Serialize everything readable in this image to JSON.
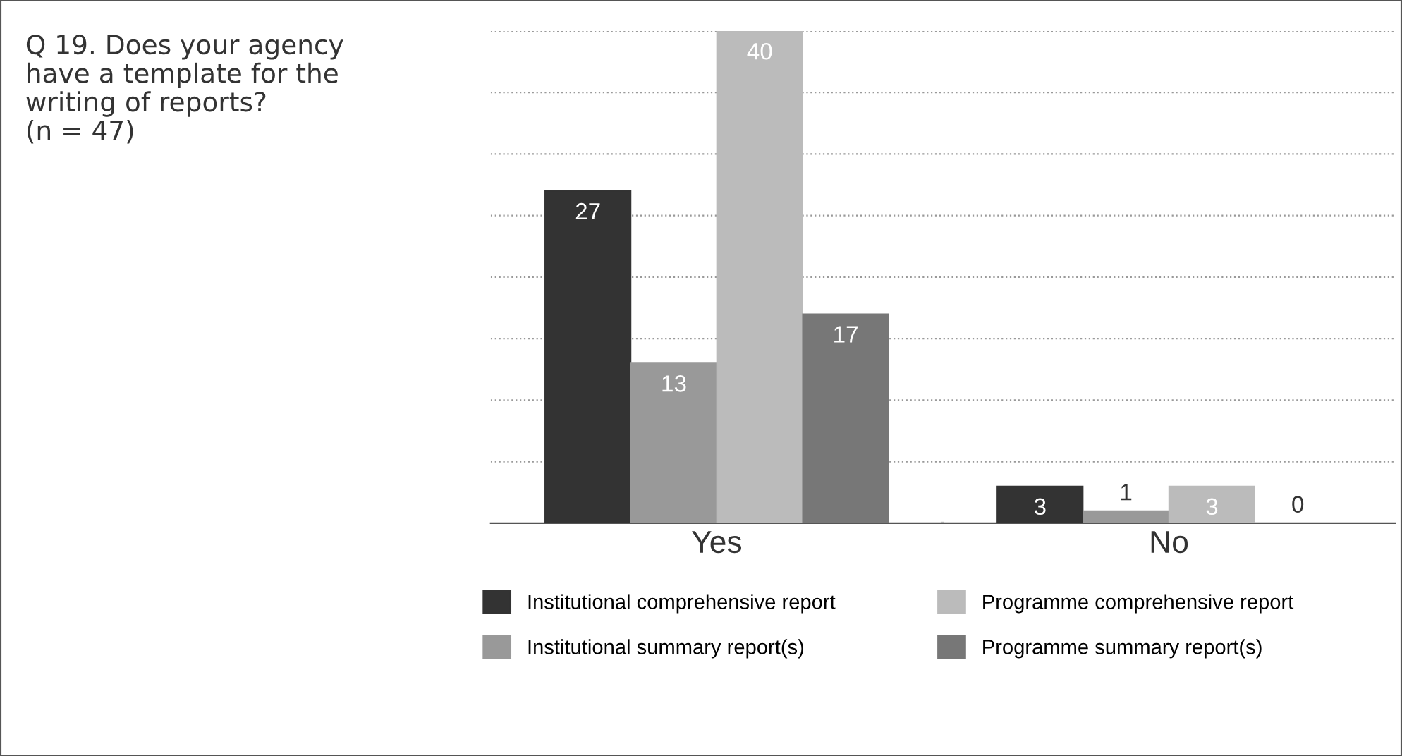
{
  "chart_data": {
    "type": "bar",
    "title": "Q 19. Does your agency\nhave a template for the\nwriting of reports?\n(n = 47)",
    "categories": [
      "Yes",
      "No"
    ],
    "series": [
      {
        "name": "Institutional comprehensive report",
        "color": "#333333",
        "values": [
          27,
          3
        ]
      },
      {
        "name": "Institutional summary report(s)",
        "color": "#999999",
        "values": [
          13,
          1
        ]
      },
      {
        "name": "Programme comprehensive report",
        "color": "#bbbbbb",
        "values": [
          40,
          3
        ]
      },
      {
        "name": "Programme summary report(s)",
        "color": "#777777",
        "values": [
          17,
          0
        ]
      }
    ],
    "ylim": [
      0,
      40
    ],
    "yticks": [
      {
        "value": 5,
        "label": null
      },
      {
        "value": 10,
        "label": null
      },
      {
        "value": 15,
        "label": null
      },
      {
        "value": 20,
        "label": null
      },
      {
        "value": 25,
        "label": null
      },
      {
        "value": 30,
        "label": null
      },
      {
        "value": 35,
        "label": null
      },
      {
        "value": 40,
        "label": null
      }
    ],
    "tick_labels": "x",
    "grid": "y",
    "legend": "bottom",
    "data_labels": true
  }
}
